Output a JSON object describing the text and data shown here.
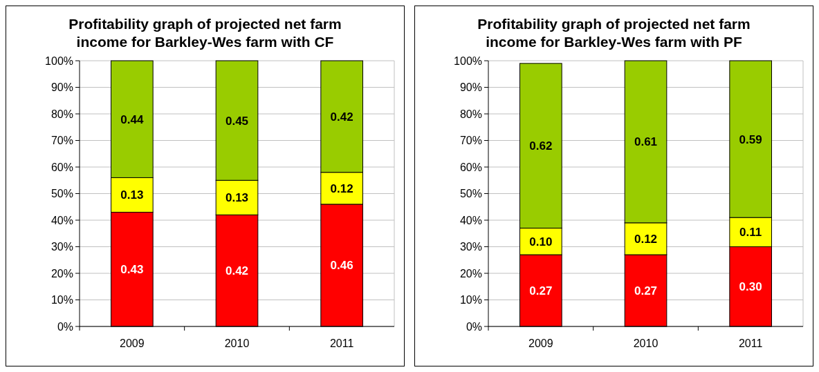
{
  "chart_data": [
    {
      "type": "bar",
      "title": "Profitability graph of projected net farm income for Barkley-Wes farm with CF",
      "categories": [
        "2009",
        "2010",
        "2011"
      ],
      "stacked": true,
      "grid": "y",
      "ylim": [
        0,
        1
      ],
      "yticks": [
        {
          "value": 0,
          "label": "0%"
        },
        {
          "value": 0.1,
          "label": "10%"
        },
        {
          "value": 0.2,
          "label": "20%"
        },
        {
          "value": 0.3,
          "label": "30%"
        },
        {
          "value": 0.4,
          "label": "40%"
        },
        {
          "value": 0.5,
          "label": "50%"
        },
        {
          "value": 0.6,
          "label": "60%"
        },
        {
          "value": 0.7,
          "label": "70%"
        },
        {
          "value": 0.8,
          "label": "80%"
        },
        {
          "value": 0.9,
          "label": "90%"
        },
        {
          "value": 1,
          "label": "100%"
        }
      ],
      "series": [
        {
          "color": "#ff0000",
          "values": [
            0.43,
            0.42,
            0.46
          ],
          "value_labels": [
            "0.43",
            "0.42",
            "0.46"
          ]
        },
        {
          "color": "#ffff00",
          "values": [
            0.13,
            0.13,
            0.12
          ],
          "value_labels": [
            "0.13",
            "0.13",
            "0.12"
          ]
        },
        {
          "color": "#99cc00",
          "values": [
            0.44,
            0.45,
            0.42
          ],
          "value_labels": [
            "0.44",
            "0.45",
            "0.42"
          ]
        }
      ]
    },
    {
      "type": "bar",
      "title": "Profitability graph of projected net farm income for Barkley-Wes farm with PF",
      "categories": [
        "2009",
        "2010",
        "2011"
      ],
      "stacked": true,
      "grid": "y",
      "ylim": [
        0,
        1
      ],
      "yticks": [
        {
          "value": 0,
          "label": "0%"
        },
        {
          "value": 0.1,
          "label": "10%"
        },
        {
          "value": 0.2,
          "label": "20%"
        },
        {
          "value": 0.3,
          "label": "30%"
        },
        {
          "value": 0.4,
          "label": "40%"
        },
        {
          "value": 0.5,
          "label": "50%"
        },
        {
          "value": 0.6,
          "label": "60%"
        },
        {
          "value": 0.7,
          "label": "70%"
        },
        {
          "value": 0.8,
          "label": "80%"
        },
        {
          "value": 0.9,
          "label": "90%"
        },
        {
          "value": 1,
          "label": "100%"
        }
      ],
      "series": [
        {
          "color": "#ff0000",
          "values": [
            0.27,
            0.27,
            0.3
          ],
          "value_labels": [
            "0.27",
            "0.27",
            "0.30"
          ]
        },
        {
          "color": "#ffff00",
          "values": [
            0.1,
            0.12,
            0.11
          ],
          "value_labels": [
            "0.10",
            "0.12",
            "0.11"
          ]
        },
        {
          "color": "#99cc00",
          "values": [
            0.62,
            0.61,
            0.59
          ],
          "value_labels": [
            "0.62",
            "0.61",
            "0.59"
          ]
        }
      ]
    }
  ]
}
